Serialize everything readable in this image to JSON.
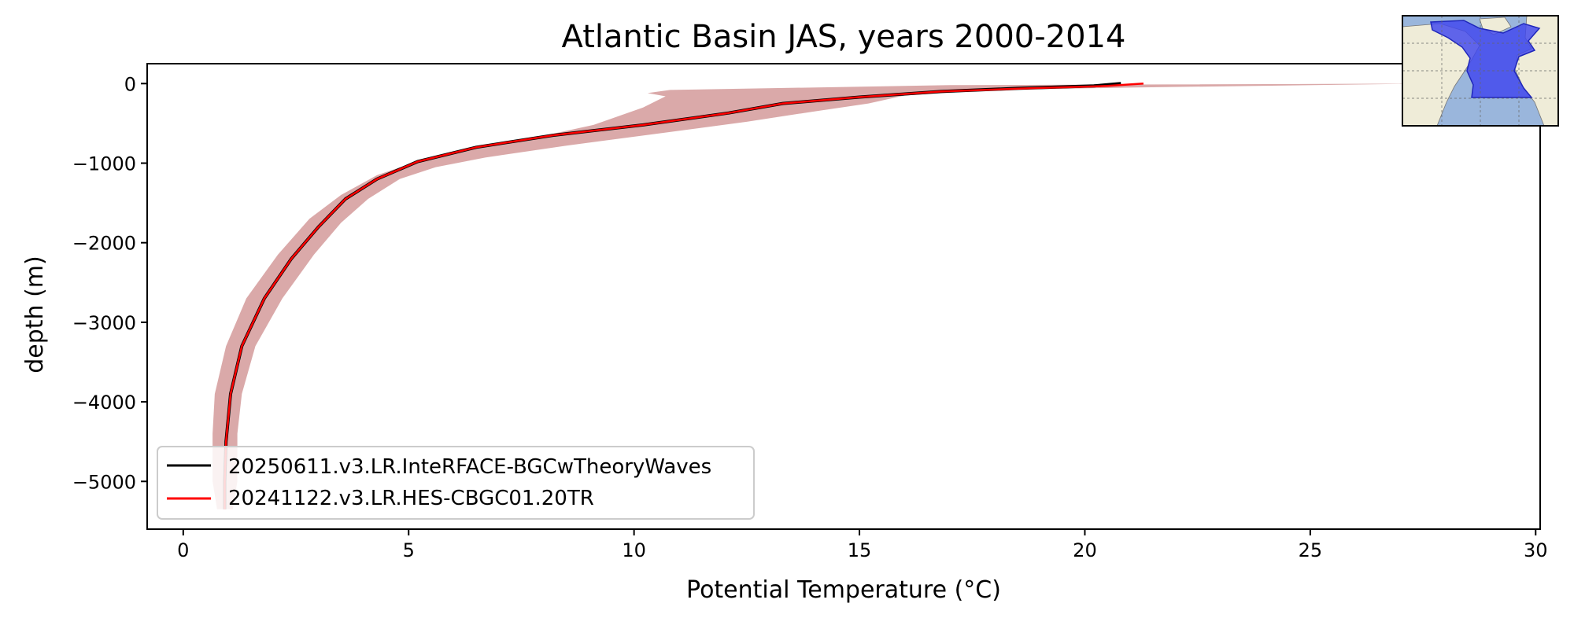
{
  "chart_data": {
    "type": "line",
    "title": "Atlantic Basin JAS, years 2000-2014",
    "xlabel": "Potential Temperature (°C)",
    "ylabel": "depth (m)",
    "xlim": [
      -0.8,
      30.1
    ],
    "ylim": [
      -5600,
      250
    ],
    "xticks": [
      0,
      5,
      10,
      15,
      20,
      25,
      30
    ],
    "yticks": [
      0,
      -1000,
      -2000,
      -3000,
      -4000,
      -5000
    ],
    "ytick_labels": [
      "0",
      "−1000",
      "−2000",
      "−3000",
      "−4000",
      "−5000"
    ],
    "legend_position": "lower-left",
    "inset": "atlantic-basin-map",
    "band": {
      "color": "#cc8888",
      "upper": [
        [
          27.5,
          0
        ],
        [
          21,
          -50
        ],
        [
          18,
          -80
        ],
        [
          16,
          -150
        ],
        [
          15.2,
          -250
        ],
        [
          14,
          -350
        ],
        [
          12.5,
          -480
        ],
        [
          10.5,
          -630
        ],
        [
          8.5,
          -780
        ],
        [
          6.7,
          -930
        ],
        [
          5.6,
          -1050
        ],
        [
          4.8,
          -1200
        ],
        [
          4.1,
          -1450
        ],
        [
          3.5,
          -1750
        ],
        [
          2.9,
          -2150
        ],
        [
          2.2,
          -2700
        ],
        [
          1.6,
          -3300
        ],
        [
          1.3,
          -3900
        ],
        [
          1.2,
          -4400
        ],
        [
          1.2,
          -5000
        ],
        [
          1.1,
          -5350
        ]
      ],
      "lower": [
        [
          0.75,
          -5350
        ],
        [
          0.65,
          -5000
        ],
        [
          0.65,
          -4400
        ],
        [
          0.7,
          -3900
        ],
        [
          0.95,
          -3300
        ],
        [
          1.4,
          -2700
        ],
        [
          2.1,
          -2150
        ],
        [
          2.8,
          -1700
        ],
        [
          3.5,
          -1400
        ],
        [
          4.3,
          -1150
        ],
        [
          5.3,
          -960
        ],
        [
          6.5,
          -820
        ],
        [
          7.8,
          -680
        ],
        [
          9.1,
          -520
        ],
        [
          10.2,
          -300
        ],
        [
          10.7,
          -160
        ],
        [
          10.3,
          -120
        ],
        [
          10.8,
          -80
        ],
        [
          17,
          -20
        ],
        [
          27.5,
          0
        ]
      ]
    },
    "series": [
      {
        "name": "20250611.v3.LR.InteRFACE-BGCwTheoryWaves",
        "color": "#000000",
        "points": [
          [
            20.8,
            0
          ],
          [
            20.2,
            -30
          ],
          [
            18.5,
            -60
          ],
          [
            16.8,
            -100
          ],
          [
            15,
            -170
          ],
          [
            13.3,
            -250
          ],
          [
            12.1,
            -370
          ],
          [
            10.2,
            -520
          ],
          [
            8.2,
            -650
          ],
          [
            6.5,
            -800
          ],
          [
            5.2,
            -980
          ],
          [
            4.3,
            -1200
          ],
          [
            3.6,
            -1450
          ],
          [
            3.0,
            -1800
          ],
          [
            2.4,
            -2200
          ],
          [
            1.8,
            -2700
          ],
          [
            1.3,
            -3300
          ],
          [
            1.05,
            -3900
          ],
          [
            0.95,
            -4500
          ],
          [
            0.92,
            -5000
          ],
          [
            0.92,
            -5350
          ]
        ]
      },
      {
        "name": "20241122.v3.LR.HES-CBGC01.20TR",
        "color": "#ff0000",
        "points": [
          [
            21.3,
            0
          ],
          [
            20.5,
            -30
          ],
          [
            18.7,
            -60
          ],
          [
            16.8,
            -100
          ],
          [
            15,
            -170
          ],
          [
            13.3,
            -250
          ],
          [
            12.1,
            -370
          ],
          [
            10.2,
            -520
          ],
          [
            8.2,
            -650
          ],
          [
            6.5,
            -800
          ],
          [
            5.2,
            -980
          ],
          [
            4.3,
            -1200
          ],
          [
            3.6,
            -1450
          ],
          [
            3.0,
            -1800
          ],
          [
            2.4,
            -2200
          ],
          [
            1.8,
            -2700
          ],
          [
            1.3,
            -3300
          ],
          [
            1.05,
            -3900
          ],
          [
            0.95,
            -4500
          ],
          [
            0.92,
            -5000
          ],
          [
            0.92,
            -5350
          ]
        ]
      }
    ]
  }
}
